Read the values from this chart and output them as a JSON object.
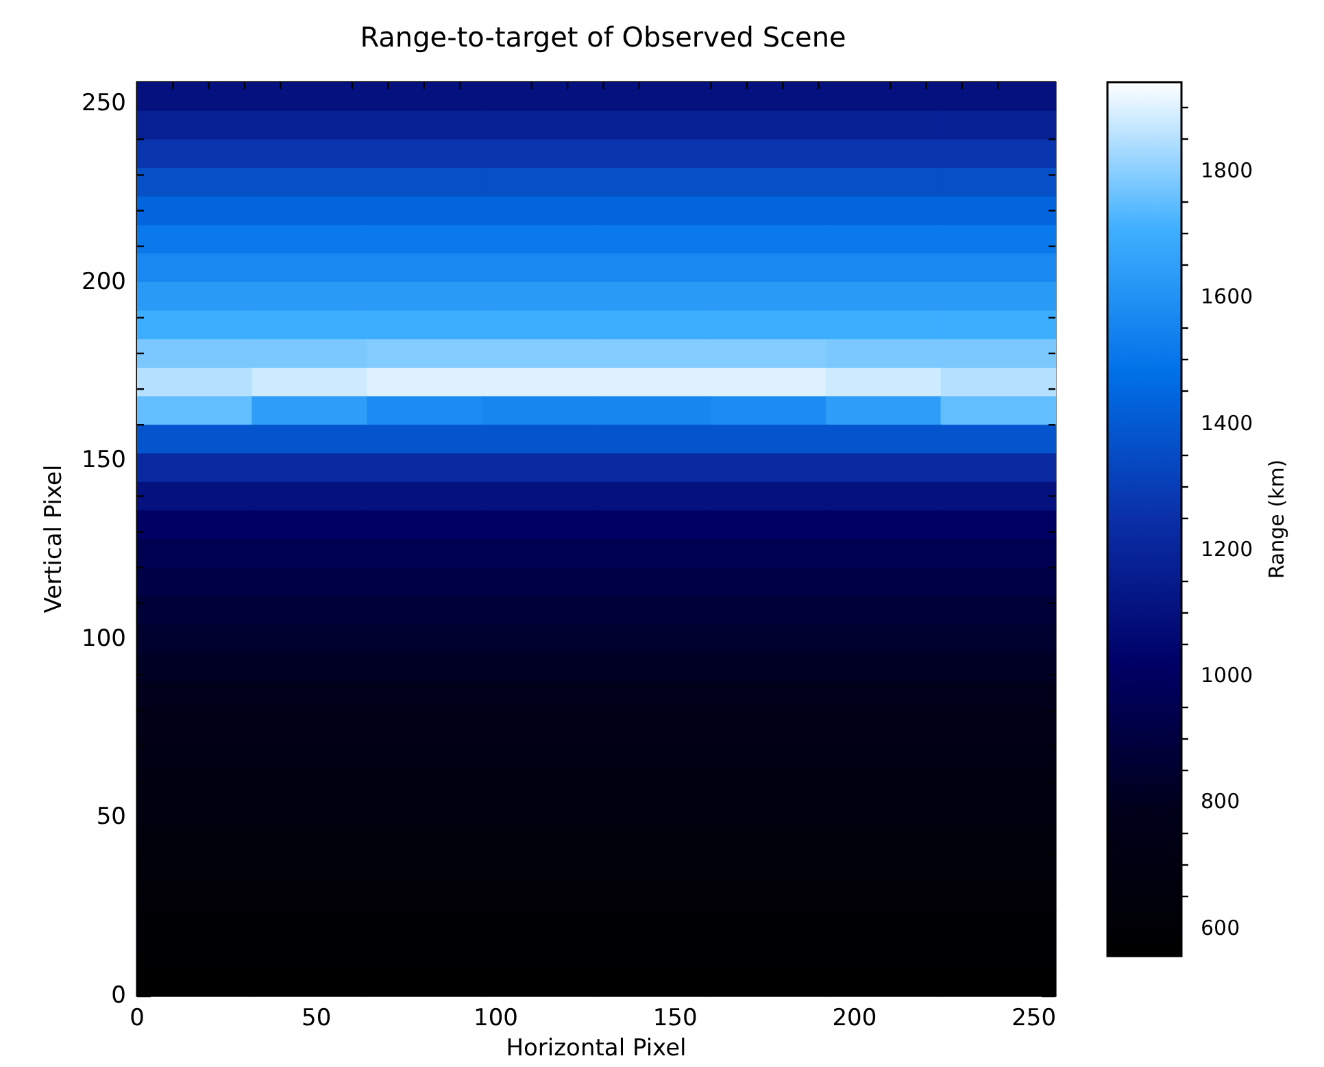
{
  "chart_data": {
    "type": "heatmap",
    "title": "Range-to-target of Observed Scene",
    "xlabel": "Horizontal Pixel",
    "ylabel": "Vertical Pixel",
    "clabel": "Range (km)",
    "xlim": [
      0,
      256
    ],
    "ylim": [
      0,
      256
    ],
    "xticks": [
      0,
      {
        "value": 10,
        "label": null
      },
      {
        "value": 20,
        "label": null
      },
      {
        "value": 30,
        "label": null
      },
      {
        "value": 40,
        "label": null
      },
      50,
      {
        "value": 60,
        "label": null
      },
      {
        "value": 70,
        "label": null
      },
      {
        "value": 80,
        "label": null
      },
      {
        "value": 90,
        "label": null
      },
      100,
      {
        "value": 110,
        "label": null
      },
      {
        "value": 120,
        "label": null
      },
      {
        "value": 130,
        "label": null
      },
      {
        "value": 140,
        "label": null
      },
      150,
      {
        "value": 160,
        "label": null
      },
      {
        "value": 170,
        "label": null
      },
      {
        "value": 180,
        "label": null
      },
      {
        "value": 190,
        "label": null
      },
      200,
      {
        "value": 210,
        "label": null
      },
      {
        "value": 220,
        "label": null
      },
      {
        "value": 230,
        "label": null
      },
      {
        "value": 240,
        "label": null
      },
      250
    ],
    "yticks": [
      0,
      {
        "value": 10,
        "label": null
      },
      {
        "value": 20,
        "label": null
      },
      {
        "value": 30,
        "label": null
      },
      {
        "value": 40,
        "label": null
      },
      50,
      {
        "value": 60,
        "label": null
      },
      {
        "value": 70,
        "label": null
      },
      {
        "value": 80,
        "label": null
      },
      {
        "value": 90,
        "label": null
      },
      100,
      {
        "value": 110,
        "label": null
      },
      {
        "value": 120,
        "label": null
      },
      {
        "value": 130,
        "label": null
      },
      {
        "value": 140,
        "label": null
      },
      150,
      {
        "value": 160,
        "label": null
      },
      {
        "value": 170,
        "label": null
      },
      {
        "value": 180,
        "label": null
      },
      {
        "value": 190,
        "label": null
      },
      200,
      {
        "value": 210,
        "label": null
      },
      {
        "value": 220,
        "label": null
      },
      {
        "value": 230,
        "label": null
      },
      {
        "value": 240,
        "label": null
      },
      250
    ],
    "clim": [
      555,
      1940
    ],
    "cticks": [
      600,
      {
        "value": 650,
        "label": null
      },
      {
        "value": 700,
        "label": null
      },
      {
        "value": 750,
        "label": null
      },
      800,
      {
        "value": 850,
        "label": null
      },
      {
        "value": 900,
        "label": null
      },
      {
        "value": 950,
        "label": null
      },
      1000,
      {
        "value": 1050,
        "label": null
      },
      {
        "value": 1100,
        "label": null
      },
      {
        "value": 1150,
        "label": null
      },
      1200,
      {
        "value": 1250,
        "label": null
      },
      {
        "value": 1300,
        "label": null
      },
      {
        "value": 1350,
        "label": null
      },
      1400,
      {
        "value": 1450,
        "label": null
      },
      {
        "value": 1500,
        "label": null
      },
      {
        "value": 1550,
        "label": null
      },
      1600,
      {
        "value": 1650,
        "label": null
      },
      {
        "value": 1700,
        "label": null
      },
      {
        "value": 1750,
        "label": null
      },
      1800,
      {
        "value": 1850,
        "label": null
      },
      {
        "value": 1900,
        "label": null
      }
    ],
    "colors": [
      "#000000",
      "#00001a",
      "#000066",
      "#0a2fa8",
      "#0070e8",
      "#40b0ff",
      "#ffffff"
    ],
    "cells": [
      [
        1100,
        1100,
        1100,
        1100,
        1100,
        1100,
        1100,
        1100
      ],
      [
        1180,
        1180,
        1180,
        1180,
        1180,
        1180,
        1180,
        1180
      ],
      [
        1270,
        1270,
        1270,
        1270,
        1270,
        1270,
        1270,
        1270
      ],
      [
        1360,
        1360,
        1360,
        1360,
        1360,
        1360,
        1360,
        1360
      ],
      [
        1440,
        1440,
        1440,
        1440,
        1440,
        1440,
        1440,
        1440
      ],
      [
        1510,
        1510,
        1510,
        1510,
        1510,
        1510,
        1510,
        1510
      ],
      [
        1570,
        1570,
        1570,
        1570,
        1570,
        1570,
        1570,
        1570
      ],
      [
        1630,
        1630,
        1630,
        1630,
        1630,
        1630,
        1630,
        1630
      ],
      [
        1700,
        1700,
        1700,
        1700,
        1700,
        1700,
        1700,
        1700
      ],
      [
        1780,
        1780,
        1790,
        1790,
        1790,
        1790,
        1780,
        1780
      ],
      [
        1850,
        1880,
        1900,
        1900,
        1900,
        1900,
        1880,
        1850
      ],
      [
        1750,
        1640,
        1580,
        1560,
        1560,
        1580,
        1640,
        1750
      ],
      [
        1380,
        1380,
        1380,
        1380,
        1380,
        1380,
        1380,
        1380
      ],
      [
        1220,
        1220,
        1220,
        1220,
        1220,
        1220,
        1220,
        1220
      ],
      [
        1100,
        1100,
        1100,
        1100,
        1100,
        1100,
        1100,
        1100
      ],
      [
        1010,
        1010,
        1010,
        1010,
        1010,
        1010,
        1010,
        1010
      ],
      [
        960,
        960,
        960,
        960,
        960,
        960,
        960,
        960
      ],
      [
        920,
        920,
        920,
        920,
        920,
        920,
        920,
        920
      ],
      [
        880,
        880,
        880,
        880,
        880,
        880,
        880,
        880
      ],
      [
        850,
        850,
        850,
        850,
        850,
        850,
        850,
        850
      ],
      [
        820,
        820,
        820,
        820,
        820,
        820,
        820,
        820
      ],
      [
        790,
        790,
        790,
        790,
        790,
        790,
        790,
        790
      ],
      [
        760,
        760,
        760,
        760,
        760,
        760,
        760,
        760
      ],
      [
        730,
        730,
        730,
        730,
        730,
        730,
        730,
        730
      ],
      [
        700,
        700,
        700,
        700,
        700,
        700,
        700,
        700
      ],
      [
        680,
        680,
        680,
        680,
        680,
        680,
        680,
        680
      ],
      [
        650,
        650,
        650,
        650,
        650,
        650,
        650,
        650
      ],
      [
        630,
        630,
        630,
        630,
        630,
        630,
        630,
        630
      ],
      [
        610,
        610,
        610,
        610,
        610,
        610,
        610,
        610
      ],
      [
        590,
        590,
        590,
        590,
        590,
        590,
        590,
        590
      ],
      [
        575,
        575,
        575,
        575,
        575,
        575,
        575,
        575
      ],
      [
        560,
        560,
        560,
        560,
        560,
        560,
        560,
        560
      ]
    ]
  }
}
